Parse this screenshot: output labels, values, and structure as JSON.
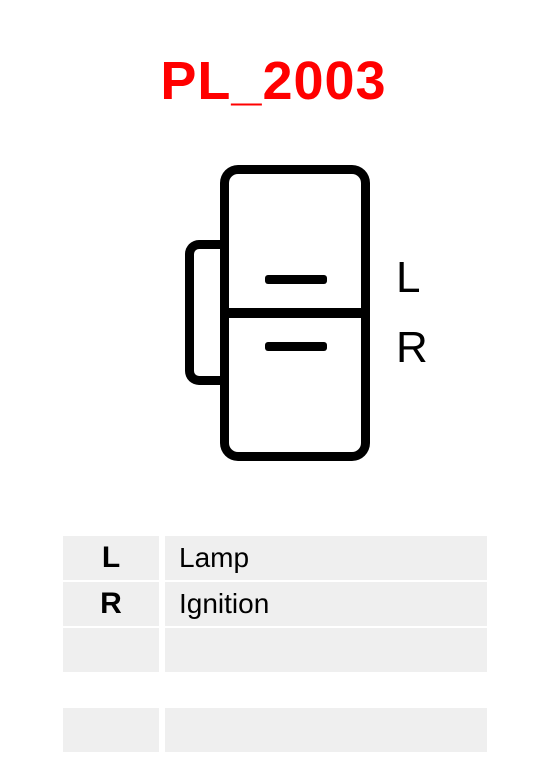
{
  "title": "PL_2003",
  "title_color": "#ff0000",
  "connector": {
    "pins": [
      {
        "label": "L",
        "name": "Lamp"
      },
      {
        "label": "R",
        "name": "Ignition"
      }
    ],
    "stroke_color": "#000000",
    "stroke_width": 9,
    "background": "#ffffff"
  },
  "legend": {
    "row_bg": "#efefef",
    "label_fontsize": 30,
    "value_fontsize": 28,
    "rows": [
      {
        "key": "L",
        "value": "Lamp"
      },
      {
        "key": "R",
        "value": "Ignition"
      },
      {
        "key": "",
        "value": ""
      }
    ],
    "extra_rows": [
      {
        "key": "",
        "value": ""
      }
    ]
  }
}
